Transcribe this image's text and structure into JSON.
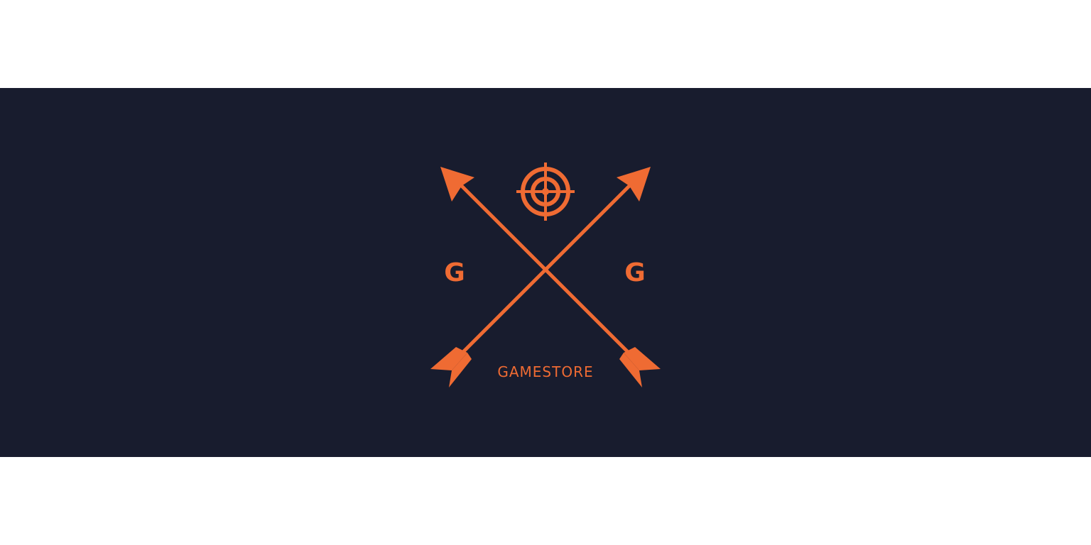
{
  "logo": {
    "brand_color": "#ef6b33",
    "background_color": "#181c2e",
    "left_letter": "G",
    "right_letter": "G",
    "wordmark": "GAMESTORE",
    "icons": [
      "crosshair-icon",
      "arrow-icon",
      "arrow-icon"
    ]
  }
}
